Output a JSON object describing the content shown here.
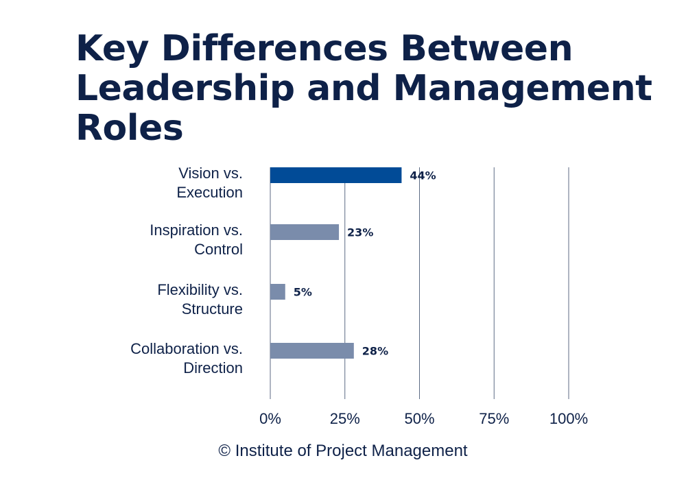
{
  "title": "Key Differences Between Leadership and Management Roles",
  "credit": "© Institute of Project Management",
  "colors": {
    "title": "#0e2148",
    "highlight_bar": "#014b97",
    "bar": "#7a8cab",
    "gridline": "#5c6a83",
    "text": "#0e2148"
  },
  "chart_data": {
    "type": "bar",
    "orientation": "horizontal",
    "categories": [
      [
        "Vision vs.",
        "Execution"
      ],
      [
        "Inspiration vs.",
        "Control"
      ],
      [
        "Flexibility vs.",
        "Structure"
      ],
      [
        "Collaboration vs.",
        "Direction"
      ]
    ],
    "values": [
      44,
      23,
      5,
      28
    ],
    "data_labels": [
      "44%",
      "23%",
      "5%",
      "28%"
    ],
    "highlighted_index": 0,
    "xlim": [
      0,
      100
    ],
    "xticks": [
      0,
      25,
      50,
      75,
      100
    ],
    "xtick_labels": [
      "0%",
      "25%",
      "50%",
      "75%",
      "100%"
    ],
    "grid": "vertical"
  }
}
